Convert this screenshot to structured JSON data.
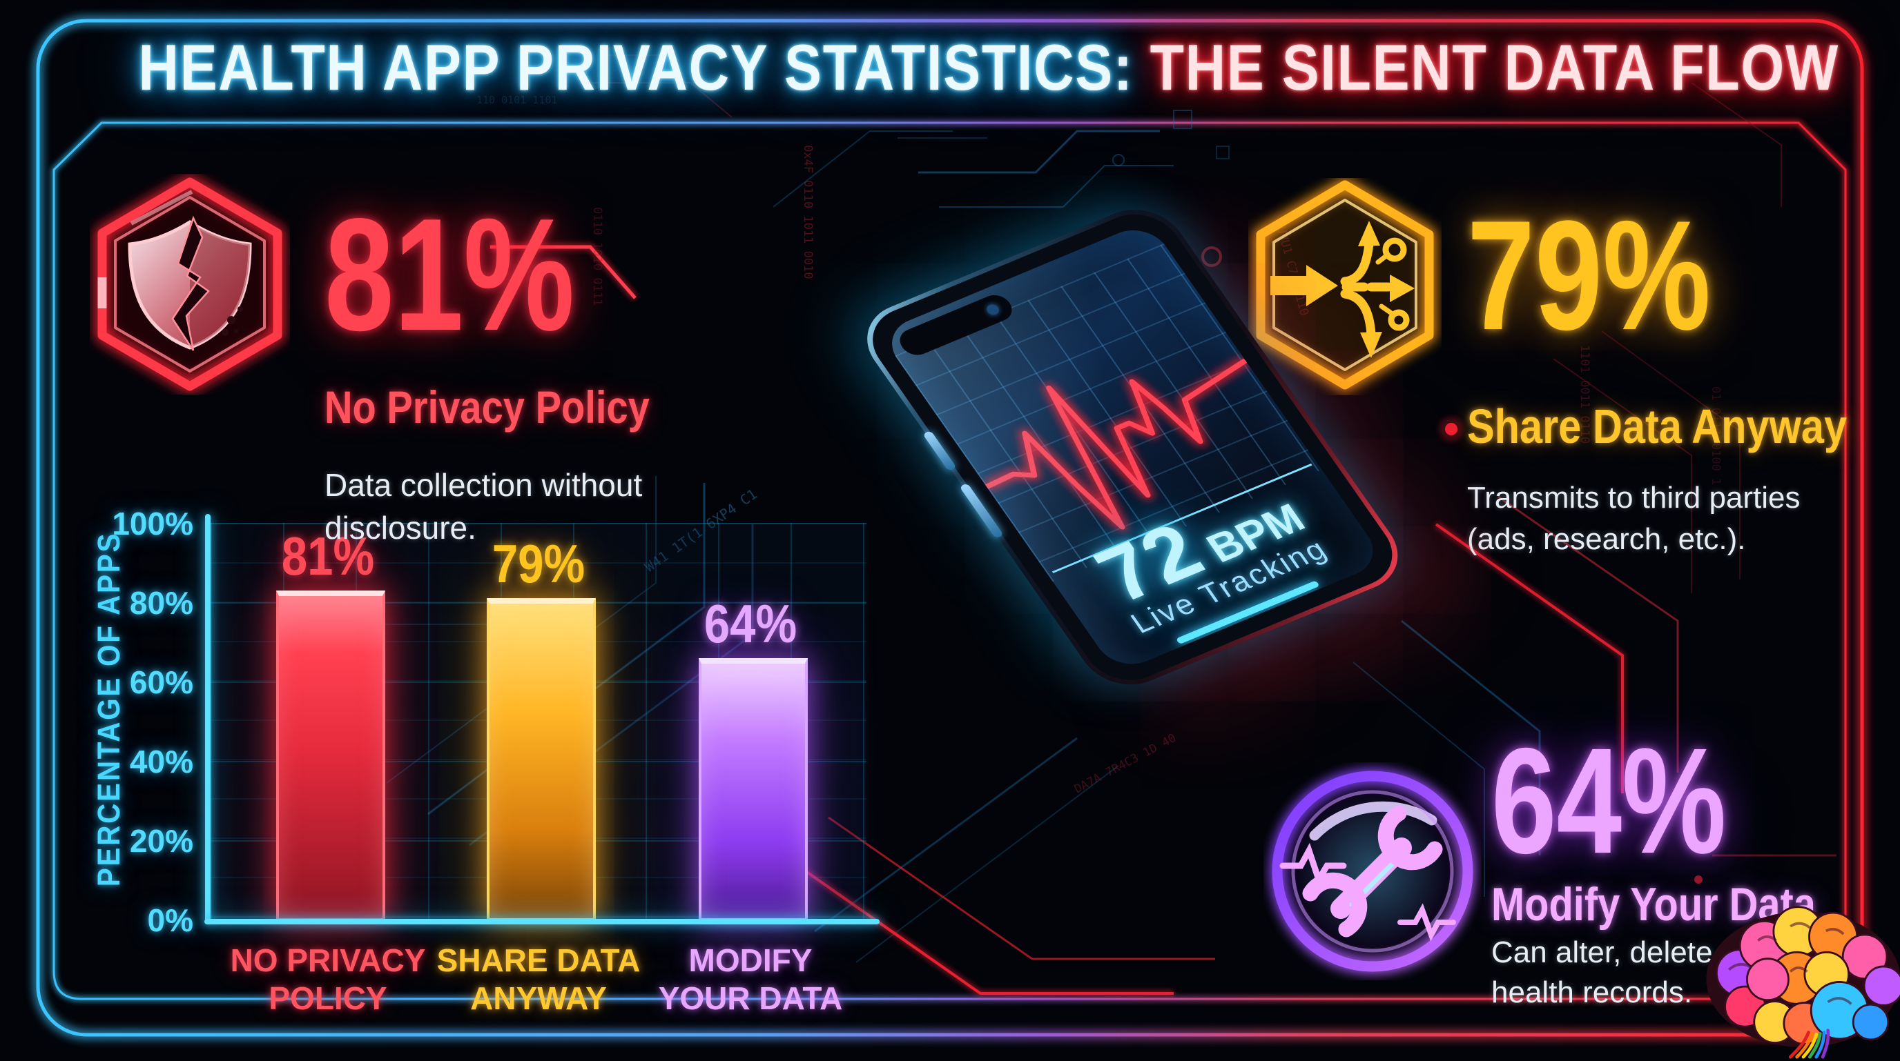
{
  "title": {
    "part1": "HEALTH APP PRIVACY STATISTICS:",
    "part2": " THE SILENT DATA FLOW"
  },
  "stats": {
    "no_privacy": {
      "value": "81%",
      "label": "No Privacy Policy",
      "description_lines": [
        "Data collection without",
        "disclosure."
      ]
    },
    "share_data": {
      "value": "79%",
      "label": "Share Data Anyway",
      "description_lines": [
        "Transmits to third parties",
        "(ads, research, etc.)."
      ]
    },
    "modify_data": {
      "value": "64%",
      "label": "Modify Your Data",
      "description_lines": [
        "Can alter, delete, or change",
        "health records."
      ]
    }
  },
  "phone": {
    "bpm_value": "72",
    "bpm_unit": "BPM",
    "status_label": "Live Tracking"
  },
  "chart_data": {
    "type": "bar",
    "title": "",
    "categories": [
      "NO PRIVACY POLICY",
      "SHARE DATA ANYWAY",
      "MODIFY YOUR DATA"
    ],
    "category_lines": [
      [
        "NO PRIVACY",
        "POLICY"
      ],
      [
        "SHARE DATA",
        "ANYWAY"
      ],
      [
        "MODIFY",
        "YOUR DATA"
      ]
    ],
    "values": [
      81,
      79,
      64
    ],
    "bar_labels": [
      "81%",
      "79%",
      "64%"
    ],
    "bar_colors": [
      "#ff4152",
      "#ffb525",
      "#a855f7"
    ],
    "xlabel": "",
    "ylabel": "PERCENTAGE OF APPS",
    "ylim": [
      0,
      100
    ],
    "yticks": [
      "0%",
      "20%",
      "40%",
      "60%",
      "80%",
      "100%"
    ],
    "grid": true,
    "legend": false
  },
  "icons": [
    "cracked-shield-icon",
    "data-branch-icon",
    "wrench-heartbeat-icon",
    "brain-icon"
  ],
  "colors": {
    "background": "#02040c",
    "cyan_accent": "#45d6ff",
    "red_accent": "#ff2a3a",
    "yellow_accent": "#ffc21d",
    "purple_accent": "#b05cff",
    "pink_text": "#f3acff",
    "white_text": "#e8eef6"
  },
  "background": {
    "code_snippets": [
      "0x4F 0110 1011 0010",
      "UVU1 C7 00110",
      "W41 1T(1 6XP4 C1",
      "DA7A 7R4C3 1D 40",
      "1101 0011 0110",
      "0110 1010 0111",
      "01 0111 0100 1",
      "110 0101 1101"
    ]
  }
}
